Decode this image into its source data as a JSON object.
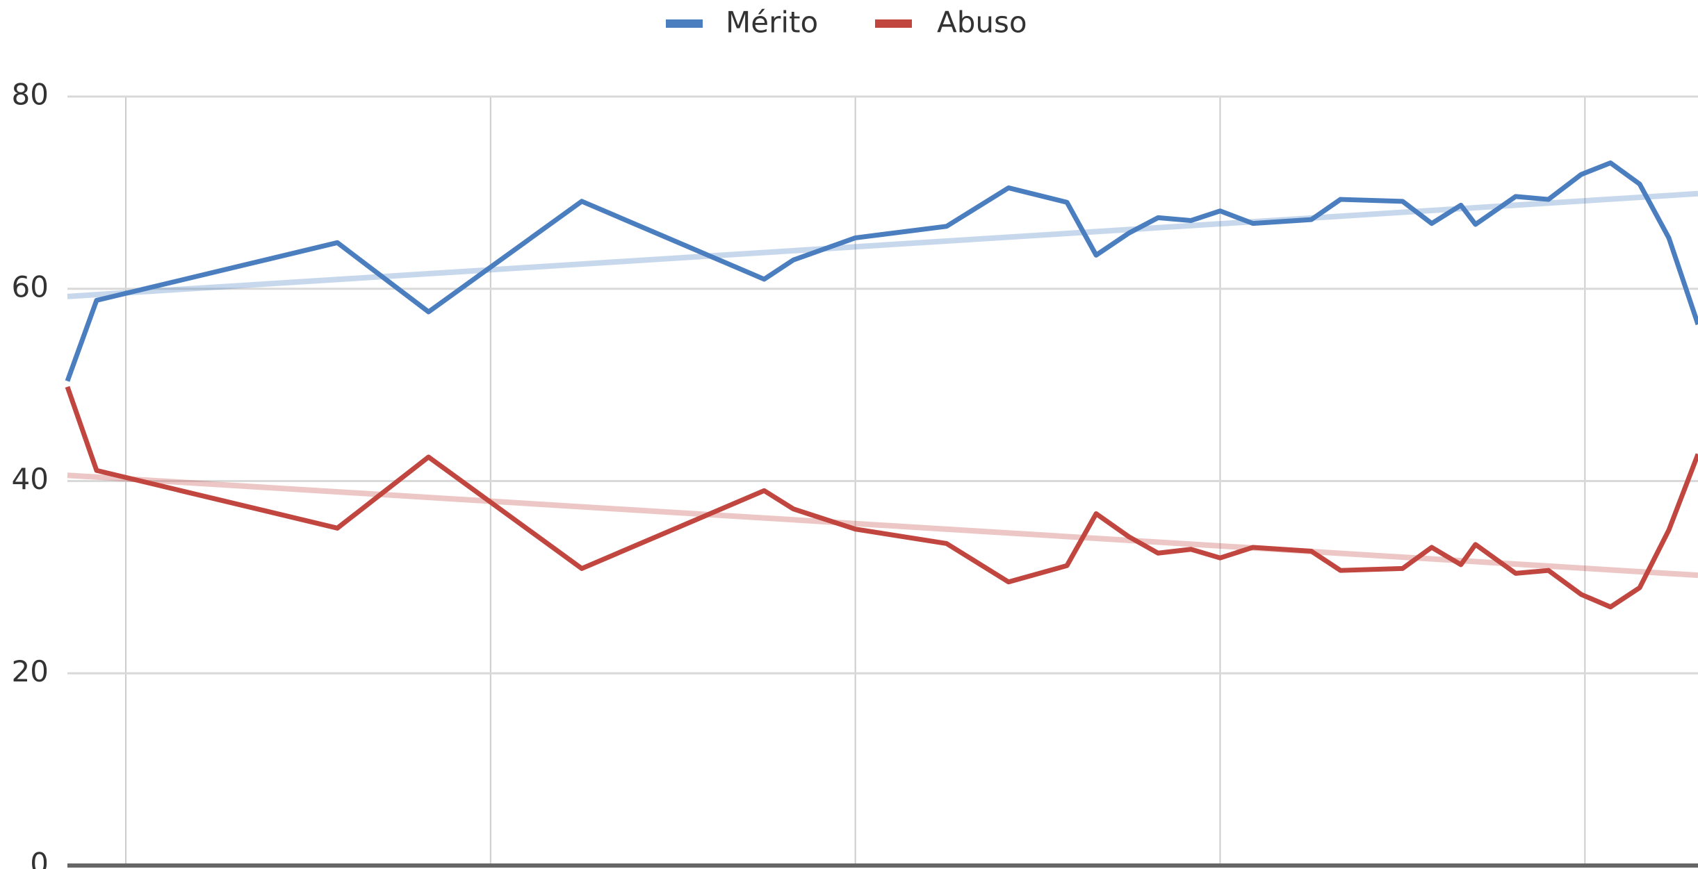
{
  "chart_data": {
    "type": "line",
    "x": [
      -0.16,
      -0.08,
      0.58,
      0.83,
      1.25,
      1.75,
      1.83,
      2.0,
      2.25,
      2.42,
      2.58,
      2.66,
      2.75,
      2.83,
      2.92,
      3.0,
      3.09,
      3.25,
      3.33,
      3.5,
      3.58,
      3.66,
      3.7,
      3.81,
      3.9,
      3.99,
      4.07,
      4.15,
      4.23,
      4.31
    ],
    "series": [
      {
        "name": "Mérito",
        "color": "#4a7ebf",
        "trend": [
          59.2,
          69.9
        ],
        "values": [
          50.4,
          58.8,
          64.8,
          57.6,
          69.1,
          61.0,
          63.0,
          65.3,
          66.5,
          70.5,
          69.0,
          63.5,
          65.8,
          67.4,
          67.1,
          68.1,
          66.8,
          67.2,
          69.3,
          69.1,
          66.8,
          68.7,
          66.7,
          69.6,
          69.3,
          71.9,
          73.1,
          70.9,
          65.3,
          56.3
        ]
      },
      {
        "name": "Abuso",
        "color": "#c0463f",
        "trend": [
          40.6,
          30.2
        ],
        "values": [
          49.8,
          41.1,
          35.1,
          42.5,
          30.9,
          39.0,
          37.1,
          35.0,
          33.5,
          29.5,
          31.2,
          36.6,
          34.2,
          32.5,
          32.9,
          32.0,
          33.1,
          32.7,
          30.7,
          30.9,
          33.1,
          31.3,
          33.4,
          30.4,
          30.7,
          28.2,
          26.9,
          28.9,
          34.9,
          42.8
        ]
      }
    ],
    "xlim": [
      -0.16,
      4.31
    ],
    "xticks": [
      0,
      1,
      2,
      3,
      4
    ],
    "ylim": [
      0,
      80
    ],
    "yticks": [
      0,
      20,
      40,
      60,
      80
    ],
    "grid": true,
    "legend": "top"
  }
}
